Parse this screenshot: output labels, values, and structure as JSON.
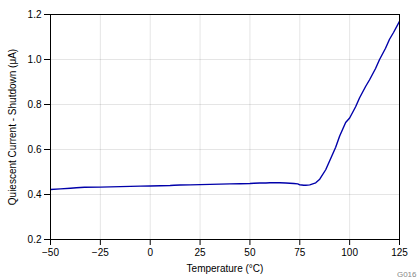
{
  "chart_data": {
    "type": "line",
    "xlabel": "Temperature (°C)",
    "ylabel": "Quiescent Current - Shutdown (μA)",
    "x": [
      -50,
      -45,
      -40,
      -37,
      -33,
      -25,
      -20,
      -15,
      -10,
      -5,
      0,
      5,
      10,
      12,
      15,
      20,
      25,
      30,
      35,
      40,
      45,
      50,
      52,
      55,
      58,
      60,
      63,
      65,
      68,
      70,
      72,
      74,
      75,
      76,
      77,
      78,
      80,
      83,
      85,
      88,
      90,
      93,
      95,
      98,
      100,
      103,
      105,
      108,
      110,
      113,
      115,
      118,
      120,
      122,
      125
    ],
    "values": [
      0.422,
      0.425,
      0.428,
      0.43,
      0.432,
      0.433,
      0.434,
      0.435,
      0.436,
      0.437,
      0.438,
      0.439,
      0.44,
      0.441,
      0.442,
      0.443,
      0.444,
      0.445,
      0.446,
      0.447,
      0.448,
      0.449,
      0.45,
      0.451,
      0.451,
      0.452,
      0.452,
      0.452,
      0.451,
      0.45,
      0.449,
      0.447,
      0.443,
      0.442,
      0.441,
      0.441,
      0.443,
      0.452,
      0.468,
      0.51,
      0.55,
      0.61,
      0.66,
      0.72,
      0.74,
      0.79,
      0.83,
      0.88,
      0.91,
      0.96,
      1.0,
      1.05,
      1.09,
      1.12,
      1.17
    ],
    "color": "#0000AA",
    "xlim": [
      -50,
      125
    ],
    "ylim": [
      0.2,
      1.2
    ],
    "xticks": [
      -50,
      -25,
      0,
      25,
      50,
      75,
      100,
      125
    ],
    "yticks": [
      0.2,
      0.4,
      0.6,
      0.8,
      {
        "value": 1.0,
        "label": "1.0"
      },
      1.2
    ],
    "grid": true,
    "annotations": [
      "G016"
    ]
  }
}
